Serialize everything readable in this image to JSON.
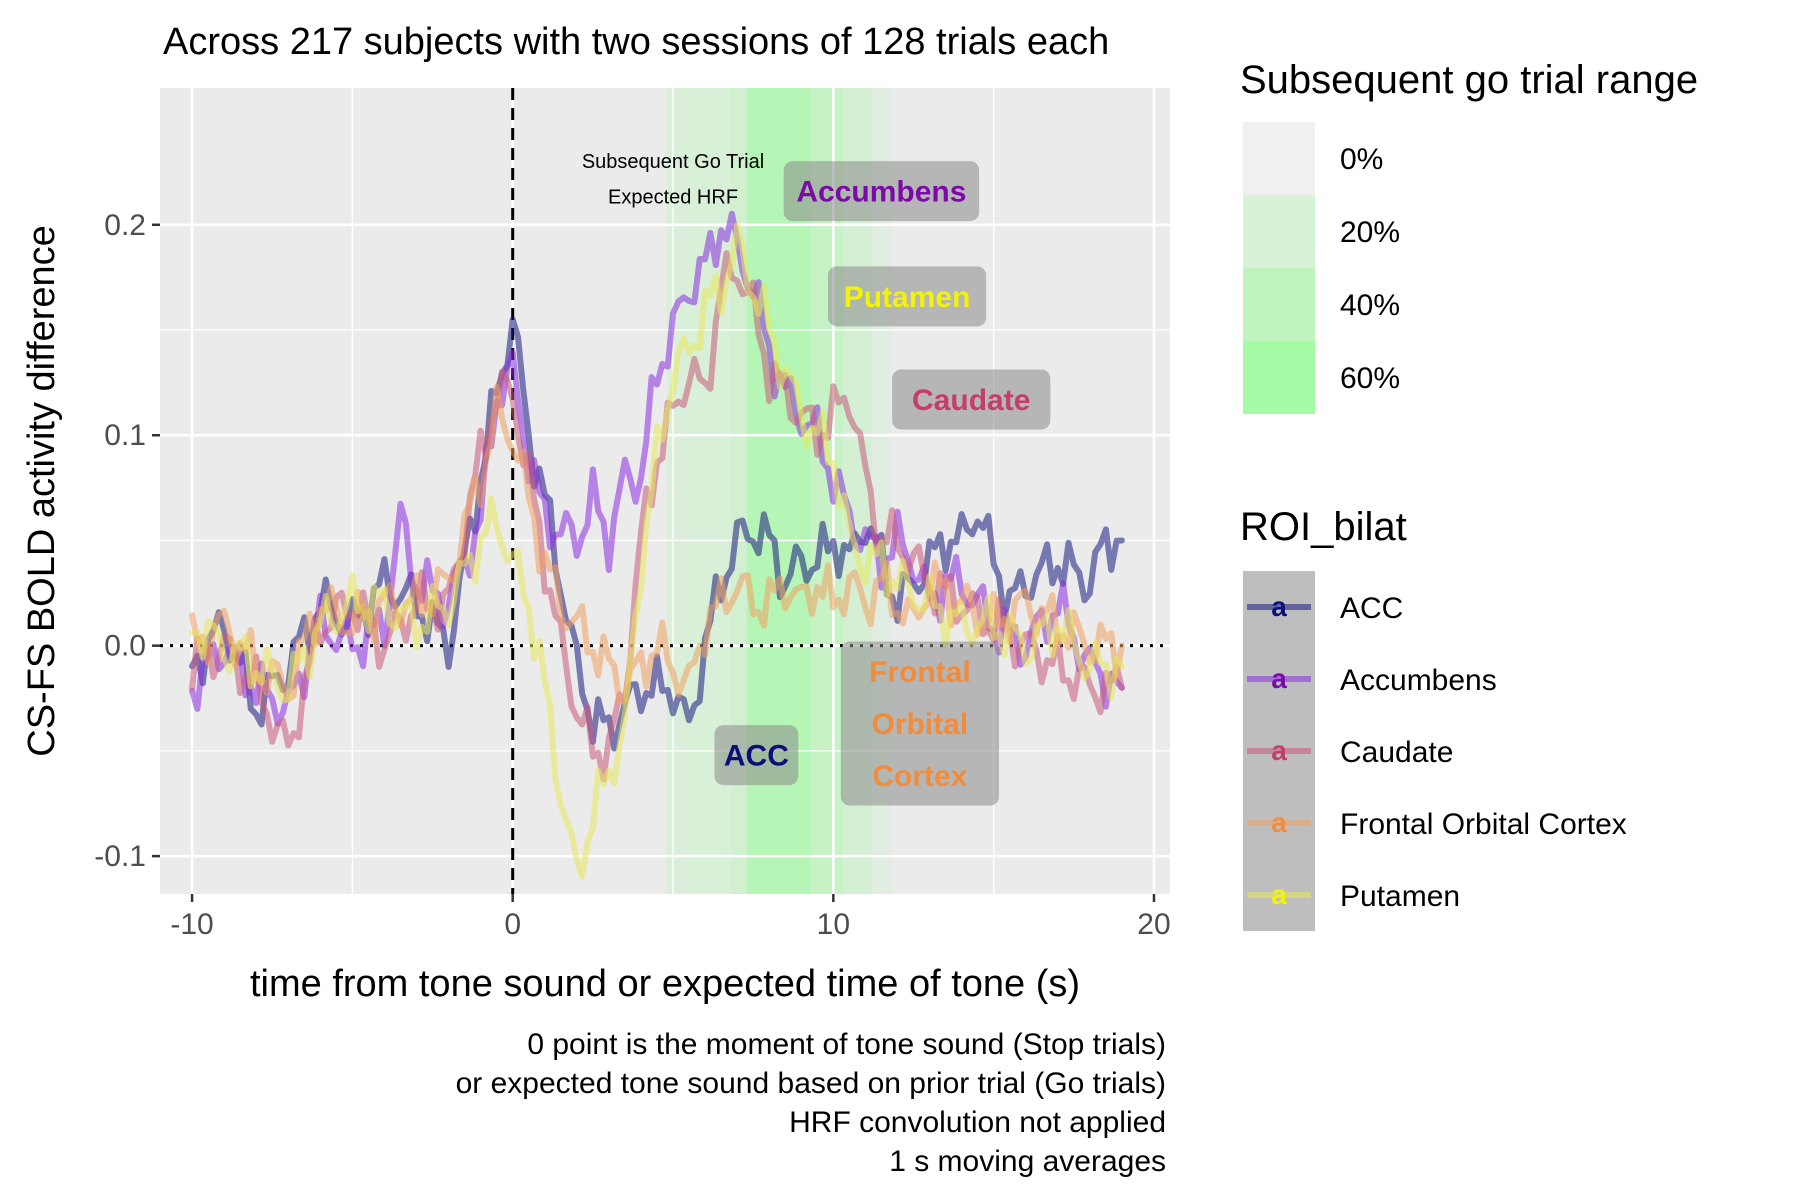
{
  "chart_data": {
    "type": "line",
    "title": "Across 217 subjects with two sessions of 128 trials each",
    "xlabel": "time from tone sound or expected time of tone (s)",
    "ylabel": "CS-FS BOLD activity difference",
    "caption": [
      "0 point is the moment of tone sound (Stop trials)",
      "or expected tone sound based on prior trial (Go trials)",
      "HRF convolution not applied",
      "1 s moving averages"
    ],
    "xlim": [
      -11,
      20.5
    ],
    "ylim": [
      -0.118,
      0.265
    ],
    "x_ticks": [
      -10,
      0,
      10,
      20
    ],
    "x_tick_labels": [
      "-10",
      "0",
      "10",
      "20"
    ],
    "y_ticks": [
      -0.1,
      0.0,
      0.1,
      0.2
    ],
    "y_tick_labels": [
      "-0.1",
      "0.0",
      "0.1",
      "0.2"
    ],
    "grid": true,
    "reference_lines": {
      "vertical_x": 0,
      "vertical_style": "dashed",
      "horizontal_y": 0,
      "horizontal_style": "dotted"
    },
    "annotation_text": [
      "Subsequent Go Trial",
      "Expected HRF"
    ],
    "go_trial_band": {
      "legend_title": "Subsequent go trial range",
      "levels": [
        {
          "label": "0%",
          "color": "#f0f0f0"
        },
        {
          "label": "20%",
          "color": "#d6f3d6"
        },
        {
          "label": "40%",
          "color": "#bff4bf"
        },
        {
          "label": "60%",
          "color": "#a6fba6"
        }
      ],
      "segments": [
        {
          "x0": 4.8,
          "x1": 5.3,
          "level": 0.18
        },
        {
          "x0": 5.3,
          "x1": 6.8,
          "level": 0.22
        },
        {
          "x0": 6.8,
          "x1": 7.3,
          "level": 0.3
        },
        {
          "x0": 7.3,
          "x1": 9.3,
          "level": 0.62
        },
        {
          "x0": 9.3,
          "x1": 10.3,
          "level": 0.42
        },
        {
          "x0": 10.3,
          "x1": 11.2,
          "level": 0.26
        },
        {
          "x0": 11.2,
          "x1": 11.8,
          "level": 0.12
        }
      ]
    },
    "legend_title": "ROI_bilat",
    "legend_key_glyph": "a",
    "series": [
      {
        "name": "ACC",
        "color": "#1a1a80",
        "label_color": "#0e0e7a",
        "label": "ACC",
        "label_pos": {
          "x": 7.6,
          "y": -0.052
        },
        "points": [
          [
            -10,
            -0.01
          ],
          [
            -9,
            0.01
          ],
          [
            -8,
            -0.03
          ],
          [
            -7,
            -0.01
          ],
          [
            -6,
            0.02
          ],
          [
            -5,
            0.01
          ],
          [
            -4,
            0.03
          ],
          [
            -3,
            0.02
          ],
          [
            -2,
            0.0
          ],
          [
            -1,
            0.08
          ],
          [
            -0.5,
            0.12
          ],
          [
            0,
            0.155
          ],
          [
            0.5,
            0.1
          ],
          [
            1,
            0.07
          ],
          [
            1.5,
            0.03
          ],
          [
            2,
            -0.01
          ],
          [
            2.5,
            -0.035
          ],
          [
            3,
            -0.04
          ],
          [
            3.5,
            -0.03
          ],
          [
            4,
            -0.02
          ],
          [
            4.5,
            -0.02
          ],
          [
            5,
            -0.02
          ],
          [
            5.5,
            -0.04
          ],
          [
            6,
            0.0
          ],
          [
            6.5,
            0.03
          ],
          [
            7,
            0.05
          ],
          [
            7.5,
            0.055
          ],
          [
            8,
            0.05
          ],
          [
            8.5,
            0.03
          ],
          [
            9,
            0.04
          ],
          [
            9.5,
            0.04
          ],
          [
            10,
            0.05
          ],
          [
            10.5,
            0.04
          ],
          [
            11,
            0.06
          ],
          [
            11.5,
            0.04
          ],
          [
            12,
            0.02
          ],
          [
            12.5,
            0.03
          ],
          [
            13,
            0.04
          ],
          [
            13.5,
            0.05
          ],
          [
            14,
            0.05
          ],
          [
            14.5,
            0.065
          ],
          [
            15,
            0.04
          ],
          [
            15.5,
            0.02
          ],
          [
            16,
            0.03
          ],
          [
            17,
            0.04
          ],
          [
            18,
            0.03
          ],
          [
            18.5,
            0.05
          ],
          [
            19,
            0.05
          ]
        ]
      },
      {
        "name": "Accumbens",
        "color": "#8a2be2",
        "label_color": "#7d0aa8",
        "label": "Accumbens",
        "label_pos": {
          "x": 11.5,
          "y": 0.216
        },
        "points": [
          [
            -10,
            -0.02
          ],
          [
            -9,
            0.0
          ],
          [
            -8,
            -0.02
          ],
          [
            -7,
            -0.03
          ],
          [
            -6,
            0.01
          ],
          [
            -5,
            0.0
          ],
          [
            -4,
            0.01
          ],
          [
            -3.5,
            0.06
          ],
          [
            -3,
            0.03
          ],
          [
            -2,
            0.02
          ],
          [
            -1,
            0.06
          ],
          [
            -0.5,
            0.12
          ],
          [
            0,
            0.13
          ],
          [
            0.5,
            0.09
          ],
          [
            1,
            0.06
          ],
          [
            2,
            0.05
          ],
          [
            2.5,
            0.07
          ],
          [
            3,
            0.05
          ],
          [
            3.5,
            0.08
          ],
          [
            4,
            0.08
          ],
          [
            4.5,
            0.13
          ],
          [
            5,
            0.15
          ],
          [
            5.5,
            0.17
          ],
          [
            6,
            0.18
          ],
          [
            6.5,
            0.2
          ],
          [
            7,
            0.19
          ],
          [
            7.5,
            0.17
          ],
          [
            8,
            0.14
          ],
          [
            8.5,
            0.12
          ],
          [
            9,
            0.11
          ],
          [
            9.5,
            0.1
          ],
          [
            10,
            0.08
          ],
          [
            10.5,
            0.06
          ],
          [
            11,
            0.05
          ],
          [
            11.5,
            0.04
          ],
          [
            12,
            0.05
          ],
          [
            12.5,
            0.04
          ],
          [
            13,
            0.02
          ],
          [
            13.5,
            0.03
          ],
          [
            14,
            0.03
          ],
          [
            15,
            0.01
          ],
          [
            16,
            0.0
          ],
          [
            17,
            0.02
          ],
          [
            18,
            -0.01
          ],
          [
            19,
            -0.02
          ]
        ]
      },
      {
        "name": "Caudate",
        "color": "#c85a7a",
        "label_color": "#c43d6b",
        "label": "Caudate",
        "label_pos": {
          "x": 14.3,
          "y": 0.117
        },
        "points": [
          [
            -10,
            -0.01
          ],
          [
            -9,
            0.0
          ],
          [
            -8,
            -0.02
          ],
          [
            -7,
            -0.05
          ],
          [
            -6,
            0.01
          ],
          [
            -5,
            0.02
          ],
          [
            -4,
            0.0
          ],
          [
            -3,
            0.02
          ],
          [
            -2,
            0.02
          ],
          [
            -1,
            0.09
          ],
          [
            -0.5,
            0.12
          ],
          [
            0,
            0.12
          ],
          [
            0.5,
            0.08
          ],
          [
            1,
            0.04
          ],
          [
            1.5,
            0.0
          ],
          [
            2,
            -0.03
          ],
          [
            2.5,
            -0.05
          ],
          [
            3,
            -0.05
          ],
          [
            3.5,
            -0.02
          ],
          [
            4,
            0.05
          ],
          [
            4.5,
            0.09
          ],
          [
            5,
            0.11
          ],
          [
            5.5,
            0.13
          ],
          [
            6,
            0.12
          ],
          [
            6.5,
            0.17
          ],
          [
            7,
            0.18
          ],
          [
            7.5,
            0.16
          ],
          [
            8,
            0.13
          ],
          [
            8.5,
            0.12
          ],
          [
            9,
            0.11
          ],
          [
            9.5,
            0.1
          ],
          [
            10,
            0.11
          ],
          [
            10.5,
            0.12
          ],
          [
            11,
            0.08
          ],
          [
            11.5,
            0.05
          ],
          [
            12,
            0.05
          ],
          [
            12.5,
            0.04
          ],
          [
            13,
            0.03
          ],
          [
            14,
            0.02
          ],
          [
            15,
            0.01
          ],
          [
            16,
            0.0
          ],
          [
            17,
            -0.01
          ],
          [
            18,
            -0.02
          ],
          [
            19,
            -0.02
          ]
        ]
      },
      {
        "name": "Frontal Orbital Cortex",
        "color": "#f0a060",
        "label_color": "#f08c3c",
        "label": "Frontal Orbital Cortex",
        "label_pos": {
          "x": 12.7,
          "y": -0.037
        },
        "points": [
          [
            -10,
            0.0
          ],
          [
            -9,
            0.01
          ],
          [
            -8,
            -0.01
          ],
          [
            -7,
            -0.02
          ],
          [
            -6,
            0.02
          ],
          [
            -5,
            0.01
          ],
          [
            -4,
            0.02
          ],
          [
            -3,
            0.02
          ],
          [
            -2,
            0.03
          ],
          [
            -1,
            0.08
          ],
          [
            -0.5,
            0.11
          ],
          [
            0,
            0.1
          ],
          [
            0.5,
            0.07
          ],
          [
            1,
            0.04
          ],
          [
            1.5,
            0.02
          ],
          [
            2,
            0.01
          ],
          [
            2.5,
            0.0
          ],
          [
            3,
            -0.01
          ],
          [
            3.5,
            -0.02
          ],
          [
            4,
            -0.01
          ],
          [
            4.5,
            0.0
          ],
          [
            5,
            -0.01
          ],
          [
            5.5,
            -0.02
          ],
          [
            6,
            0.01
          ],
          [
            6.5,
            0.02
          ],
          [
            7,
            0.03
          ],
          [
            7.5,
            0.02
          ],
          [
            8,
            0.02
          ],
          [
            8.5,
            0.03
          ],
          [
            9,
            0.02
          ],
          [
            9.5,
            0.03
          ],
          [
            10,
            0.02
          ],
          [
            10.5,
            0.03
          ],
          [
            11,
            0.02
          ],
          [
            11.5,
            0.03
          ],
          [
            12,
            0.02
          ],
          [
            12.5,
            0.01
          ],
          [
            13,
            0.03
          ],
          [
            14,
            0.02
          ],
          [
            15,
            0.01
          ],
          [
            16,
            0.02
          ],
          [
            17,
            0.01
          ],
          [
            18,
            0.0
          ],
          [
            19,
            0.0
          ]
        ]
      },
      {
        "name": "Putamen",
        "color": "#e8e85a",
        "label_color": "#f2f20a",
        "label": "Putamen",
        "label_pos": {
          "x": 12.3,
          "y": 0.166
        },
        "points": [
          [
            -10,
            0.01
          ],
          [
            -9,
            0.0
          ],
          [
            -8,
            -0.01
          ],
          [
            -7,
            -0.02
          ],
          [
            -6,
            0.01
          ],
          [
            -5,
            0.02
          ],
          [
            -4,
            0.02
          ],
          [
            -3,
            0.01
          ],
          [
            -2,
            0.02
          ],
          [
            -1,
            0.05
          ],
          [
            -0.5,
            0.06
          ],
          [
            0,
            0.04
          ],
          [
            0.5,
            0.02
          ],
          [
            1,
            -0.02
          ],
          [
            1.5,
            -0.07
          ],
          [
            2,
            -0.11
          ],
          [
            2.5,
            -0.08
          ],
          [
            3,
            -0.06
          ],
          [
            3.5,
            -0.04
          ],
          [
            4,
            0.04
          ],
          [
            4.5,
            0.09
          ],
          [
            5,
            0.13
          ],
          [
            5.5,
            0.14
          ],
          [
            6,
            0.16
          ],
          [
            6.5,
            0.17
          ],
          [
            7,
            0.19
          ],
          [
            7.5,
            0.17
          ],
          [
            8,
            0.15
          ],
          [
            8.5,
            0.13
          ],
          [
            9,
            0.11
          ],
          [
            9.5,
            0.1
          ],
          [
            10,
            0.09
          ],
          [
            10.5,
            0.05
          ],
          [
            11,
            0.04
          ],
          [
            11.5,
            0.04
          ],
          [
            12,
            0.03
          ],
          [
            13,
            0.02
          ],
          [
            14,
            0.01
          ],
          [
            15,
            0.01
          ],
          [
            16,
            0.0
          ],
          [
            17,
            0.01
          ],
          [
            18,
            -0.01
          ],
          [
            19,
            -0.01
          ]
        ]
      }
    ]
  }
}
